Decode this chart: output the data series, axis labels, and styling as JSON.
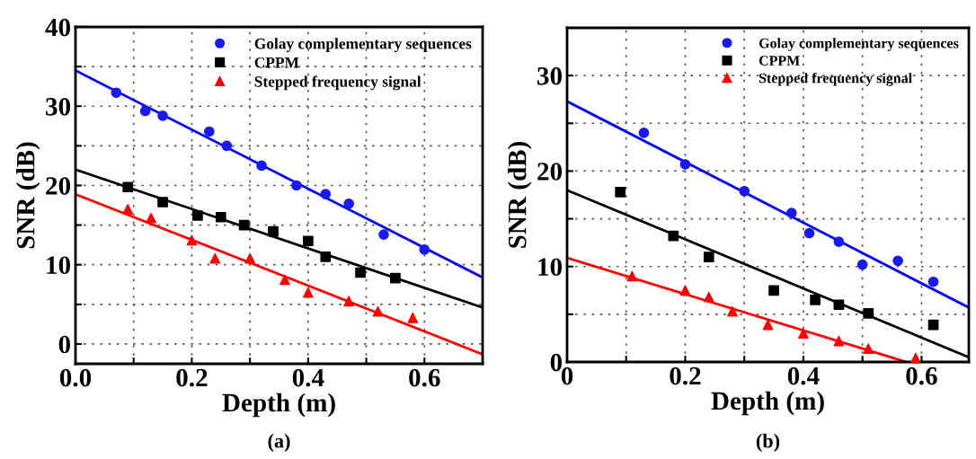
{
  "chart_data": [
    {
      "type": "scatter",
      "xlabel": "Depth (m)",
      "ylabel": "SNR (dB)",
      "annotations": [
        "(a)"
      ],
      "grid": true,
      "legend": "top right",
      "xlim": [
        0,
        0.7
      ],
      "ylim": [
        -2.5,
        40
      ],
      "xticks": [
        {
          "value": 0,
          "label": "0.0"
        },
        {
          "value": 0.1,
          "label": null
        },
        0.2,
        {
          "value": 0.3,
          "label": null
        },
        0.4,
        {
          "value": 0.5,
          "label": null
        },
        0.6
      ],
      "yticks": [
        0,
        {
          "value": 5,
          "label": null
        },
        10,
        {
          "value": 15,
          "label": null
        },
        20,
        {
          "value": 25,
          "label": null
        },
        30,
        {
          "value": 35,
          "label": null
        },
        40
      ],
      "series": [
        {
          "name": "Golay complementary sequences",
          "marker": "circle",
          "color": "#1a1aee",
          "x": [
            0.07,
            0.12,
            0.15,
            0.23,
            0.26,
            0.32,
            0.38,
            0.43,
            0.47,
            0.53,
            0.6
          ],
          "values": [
            31.7,
            29.4,
            28.8,
            26.8,
            25,
            22.5,
            20,
            18.9,
            17.7,
            13.8,
            11.9
          ]
        },
        {
          "name": "CPPM",
          "marker": "square",
          "color": "#000000",
          "x": [
            0.09,
            0.15,
            0.21,
            0.25,
            0.29,
            0.34,
            0.4,
            0.43,
            0.49,
            0.55
          ],
          "values": [
            19.8,
            17.9,
            16.2,
            16,
            15,
            14.2,
            13,
            11,
            9,
            8.3
          ]
        },
        {
          "name": "Stepped frequency signal",
          "marker": "triangle",
          "color": "#ff0000",
          "x": [
            0.09,
            0.13,
            0.2,
            0.24,
            0.3,
            0.36,
            0.4,
            0.47,
            0.52,
            0.58
          ],
          "values": [
            17,
            15.9,
            13.1,
            10.8,
            10.8,
            8.1,
            6.5,
            5.4,
            4.1,
            3.3
          ]
        },
        {
          "type": "line",
          "color": "#0000ff",
          "x": [
            0,
            0.7
          ],
          "values": [
            34.5,
            8.4
          ]
        },
        {
          "type": "line",
          "color": "#000000",
          "x": [
            0,
            0.7
          ],
          "values": [
            22,
            4.6
          ]
        },
        {
          "type": "line",
          "color": "#ff0000",
          "x": [
            0,
            0.7
          ],
          "values": [
            18.9,
            -1.3
          ]
        }
      ]
    },
    {
      "type": "scatter",
      "xlabel": "Depth (m)",
      "ylabel": "SNR (dB)",
      "annotations": [
        "(b)"
      ],
      "grid": true,
      "legend": "top right",
      "xlim": [
        0,
        0.68
      ],
      "ylim": [
        0,
        35
      ],
      "xticks": [
        0,
        {
          "value": 0.1,
          "label": null
        },
        0.2,
        {
          "value": 0.3,
          "label": null
        },
        0.4,
        {
          "value": 0.5,
          "label": null
        },
        0.6
      ],
      "yticks": [
        0,
        {
          "value": 5,
          "label": null
        },
        10,
        {
          "value": 15,
          "label": null
        },
        20,
        {
          "value": 25,
          "label": null
        },
        30
      ],
      "series": [
        {
          "name": "Golay complementary sequences",
          "marker": "circle",
          "color": "#1a1aee",
          "x": [
            0.13,
            0.2,
            0.3,
            0.38,
            0.41,
            0.46,
            0.5,
            0.56,
            0.62
          ],
          "values": [
            24,
            20.7,
            17.9,
            15.6,
            13.5,
            12.6,
            10.2,
            10.6,
            8.4
          ]
        },
        {
          "name": "CPPM",
          "marker": "square",
          "color": "#000000",
          "x": [
            0.09,
            0.18,
            0.24,
            0.35,
            0.42,
            0.46,
            0.51,
            0.62
          ],
          "values": [
            17.8,
            13.2,
            11,
            7.5,
            6.5,
            6,
            5.1,
            3.9
          ]
        },
        {
          "name": "Stepped frequency signal",
          "marker": "triangle",
          "color": "#ff0000",
          "x": [
            0.11,
            0.2,
            0.24,
            0.28,
            0.34,
            0.4,
            0.46,
            0.51,
            0.59
          ],
          "values": [
            9,
            7.5,
            6.8,
            5.3,
            3.9,
            3,
            2.2,
            1.4,
            0.4
          ]
        },
        {
          "type": "line",
          "color": "#0000ff",
          "x": [
            0,
            0.68
          ],
          "values": [
            27.3,
            5.7
          ]
        },
        {
          "type": "line",
          "color": "#000000",
          "x": [
            0,
            0.68
          ],
          "values": [
            18,
            0.5
          ]
        },
        {
          "type": "line",
          "color": "#ff0000",
          "x": [
            0,
            0.574
          ],
          "values": [
            10.9,
            0
          ]
        }
      ]
    }
  ]
}
